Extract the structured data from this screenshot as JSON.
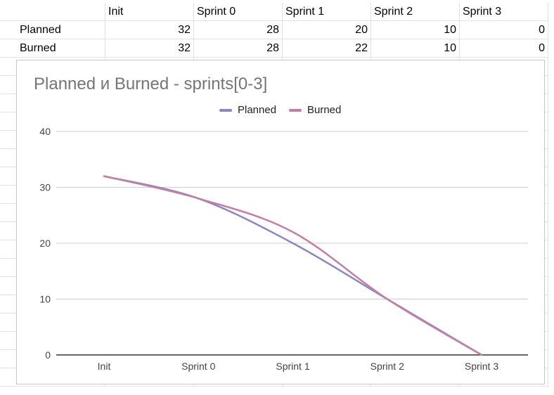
{
  "sheet": {
    "headers": [
      "",
      "Init",
      "Sprint 0",
      "Sprint 1",
      "Sprint 2",
      "Sprint 3"
    ],
    "rows": [
      {
        "label": "Planned",
        "values": [
          "32",
          "28",
          "20",
          "10",
          "0"
        ]
      },
      {
        "label": "Burned",
        "values": [
          "32",
          "28",
          "22",
          "10",
          "0"
        ]
      }
    ]
  },
  "chart_data": {
    "type": "line",
    "title": "Planned и Burned - sprints[0-3]",
    "categories": [
      "Init",
      "Sprint 0",
      "Sprint 1",
      "Sprint 2",
      "Sprint 3"
    ],
    "series": [
      {
        "name": "Planned",
        "values": [
          32,
          28,
          20,
          10,
          0
        ],
        "color": "#8e86c2"
      },
      {
        "name": "Burned",
        "values": [
          32,
          28,
          22,
          10,
          0
        ],
        "color": "#c17fa6"
      }
    ],
    "ylim": [
      0,
      40
    ],
    "yticks": [
      0,
      10,
      20,
      30,
      40
    ],
    "grid": true,
    "smooth": true,
    "legend_position": "top"
  }
}
